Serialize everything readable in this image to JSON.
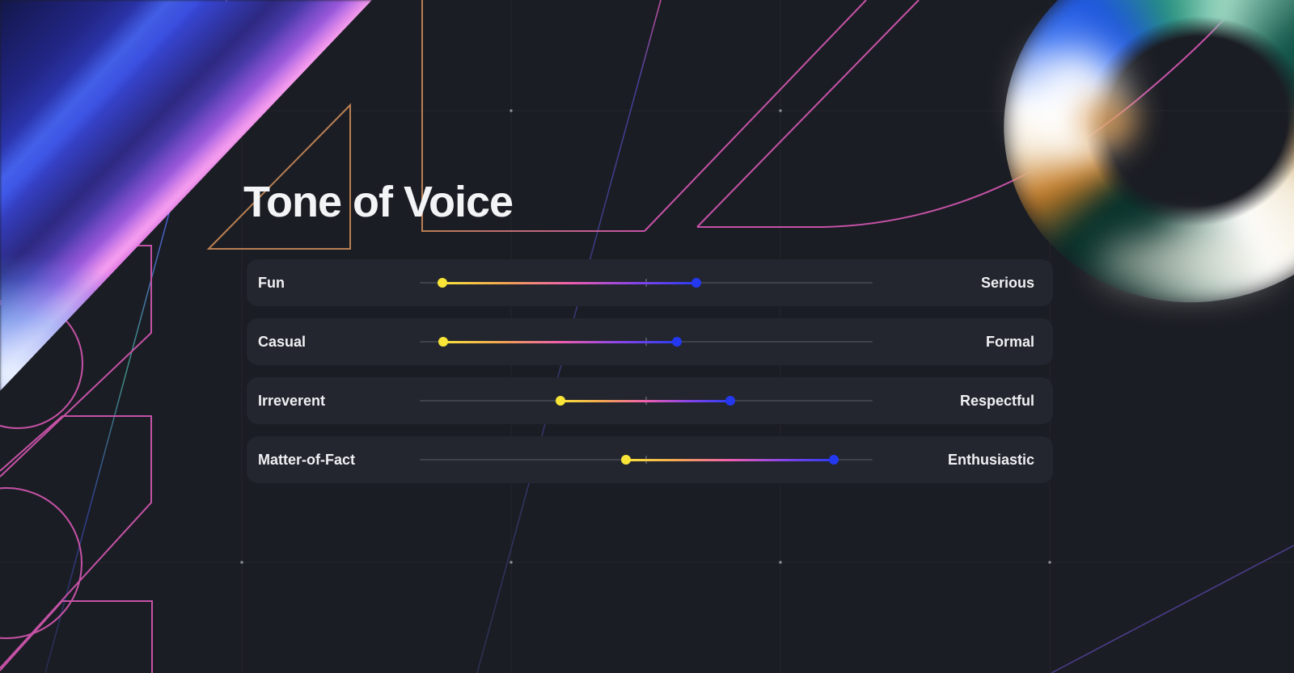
{
  "page": {
    "title": "Tone of Voice"
  },
  "sliders": {
    "rows": [
      {
        "left_label": "Fun",
        "right_label": "Serious",
        "start_pct": 5.0,
        "end_pct": 61.1
      },
      {
        "left_label": "Casual",
        "right_label": "Formal",
        "start_pct": 5.2,
        "end_pct": 56.8
      },
      {
        "left_label": "Irreverent",
        "right_label": "Respectful",
        "start_pct": 31.1,
        "end_pct": 68.6
      },
      {
        "left_label": "Matter-of-Fact",
        "right_label": "Enthusiastic",
        "start_pct": 45.5,
        "end_pct": 91.4
      }
    ],
    "colors": {
      "handle_start": "#f8e538",
      "handle_end": "#2438f0",
      "range_gradient": [
        "#f8e33c",
        "#f2a452",
        "#f05fae",
        "#8b45e8",
        "#2b3cf0"
      ],
      "track": "#3e424b"
    }
  },
  "theme": {
    "background": "#1b1d24",
    "card_background": "#23262e",
    "title_color": "#f3f4f6",
    "accent_pink": "#c552a6",
    "accent_tan": "#b97f52"
  }
}
